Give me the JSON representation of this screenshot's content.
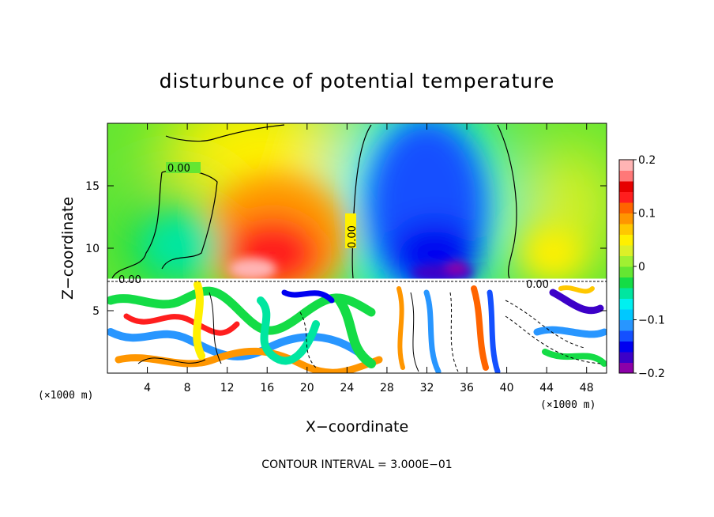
{
  "chart_data": {
    "type": "heatmap",
    "title": "disturbunce of potential temperature",
    "xlabel": "X−coordinate",
    "ylabel": "Z−coordinate",
    "x_unit_left": "(×1000 m)",
    "x_unit_right": "(×1000 m)",
    "xlim": [
      0,
      50
    ],
    "ylim": [
      0,
      20
    ],
    "x_ticks": [
      4,
      8,
      12,
      16,
      20,
      24,
      28,
      32,
      36,
      40,
      44,
      48
    ],
    "x_tick_labels": [
      "4",
      "8",
      "12",
      "16",
      "20",
      "24",
      "28",
      "32",
      "36",
      "40",
      "44",
      "48"
    ],
    "y_ticks": [
      5,
      10,
      15
    ],
    "y_tick_labels": [
      "5",
      "10",
      "15"
    ],
    "colorbar": {
      "min": -0.2,
      "max": 0.2,
      "ticks": [
        0.2,
        0.1,
        0,
        -0.1,
        -0.2
      ],
      "tick_labels": [
        "0.2",
        "0.1",
        "0",
        "−0.1",
        "−0.2"
      ],
      "colors": [
        "#8c00a8",
        "#3c00c8",
        "#0000f0",
        "#1450ff",
        "#2896ff",
        "#00c8ff",
        "#00f0f0",
        "#00e6a0",
        "#14dc46",
        "#64e632",
        "#a0f032",
        "#dcf028",
        "#fff000",
        "#ffc800",
        "#ff9600",
        "#ff6400",
        "#ff1e1e",
        "#e60000",
        "#ff7878",
        "#ffb4b4"
      ]
    },
    "contour_labels": [
      "0.00",
      "0.00",
      "0.00",
      "0.00"
    ],
    "contour_interval_note": "CONTOUR INTERVAL = 3.000E−01",
    "anomalies": [
      {
        "x": 18,
        "z": 11,
        "value": 0.18
      },
      {
        "x": 33,
        "z": 10,
        "value": -0.19
      },
      {
        "x": 32,
        "z": 16,
        "value": -0.1
      },
      {
        "x": 9,
        "z": 11,
        "value": -0.03
      },
      {
        "x": 47,
        "z": 10,
        "value": 0.06
      }
    ],
    "boundary_layer_top_z": 7.5
  }
}
